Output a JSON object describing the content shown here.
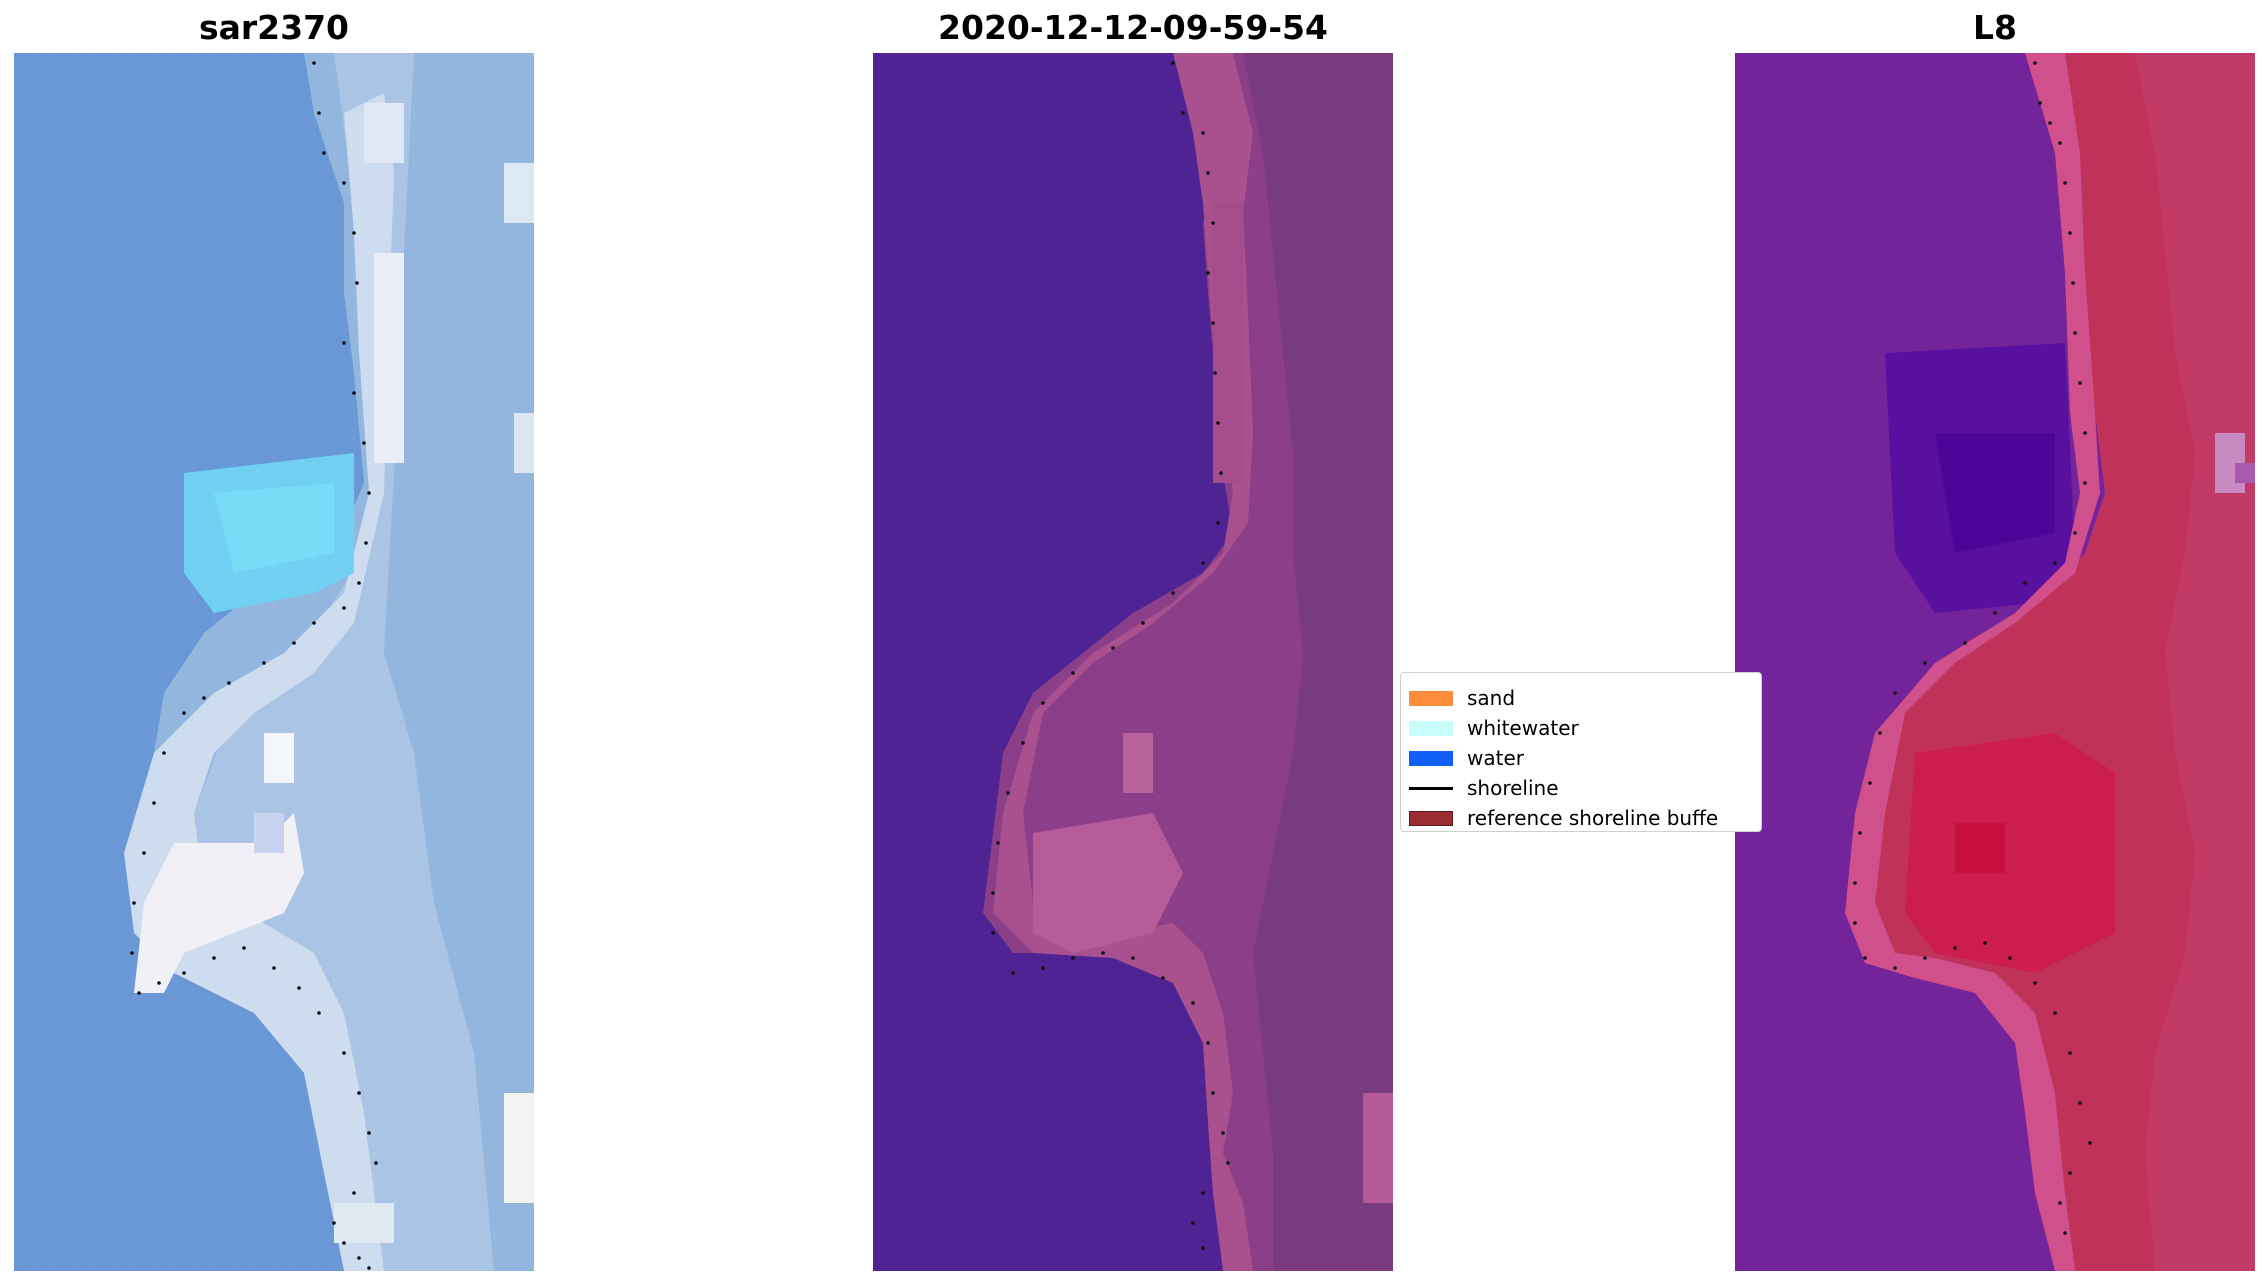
{
  "panels": [
    {
      "id": "sar",
      "title": "sar2370"
    },
    {
      "id": "classified",
      "title": "2020-12-12-09-59-54"
    },
    {
      "id": "l8",
      "title": "L8"
    }
  ],
  "legend": {
    "items": [
      {
        "label": "sand",
        "color": "#ff8b3d",
        "kind": "patch"
      },
      {
        "label": "whitewater",
        "color": "#c9fdfb",
        "kind": "patch"
      },
      {
        "label": "water",
        "color": "#1060f8",
        "kind": "patch"
      },
      {
        "label": "shoreline",
        "color": "#000000",
        "kind": "line"
      },
      {
        "label": "reference shoreline buffe",
        "color": "#9b2d33",
        "kind": "patch"
      }
    ]
  },
  "colors": {
    "sar_water": "#6a97d6",
    "sar_light": "#e6edf6",
    "sar_cyan": "#6fd0f2",
    "classified_water": "#4f2393",
    "classified_land": "#8a3f88",
    "classified_land_light": "#b65b9a",
    "l8_water": "#74249b",
    "l8_land": "#c1325a",
    "l8_land_light": "#d74683",
    "shoreline_dots": "#111111"
  }
}
